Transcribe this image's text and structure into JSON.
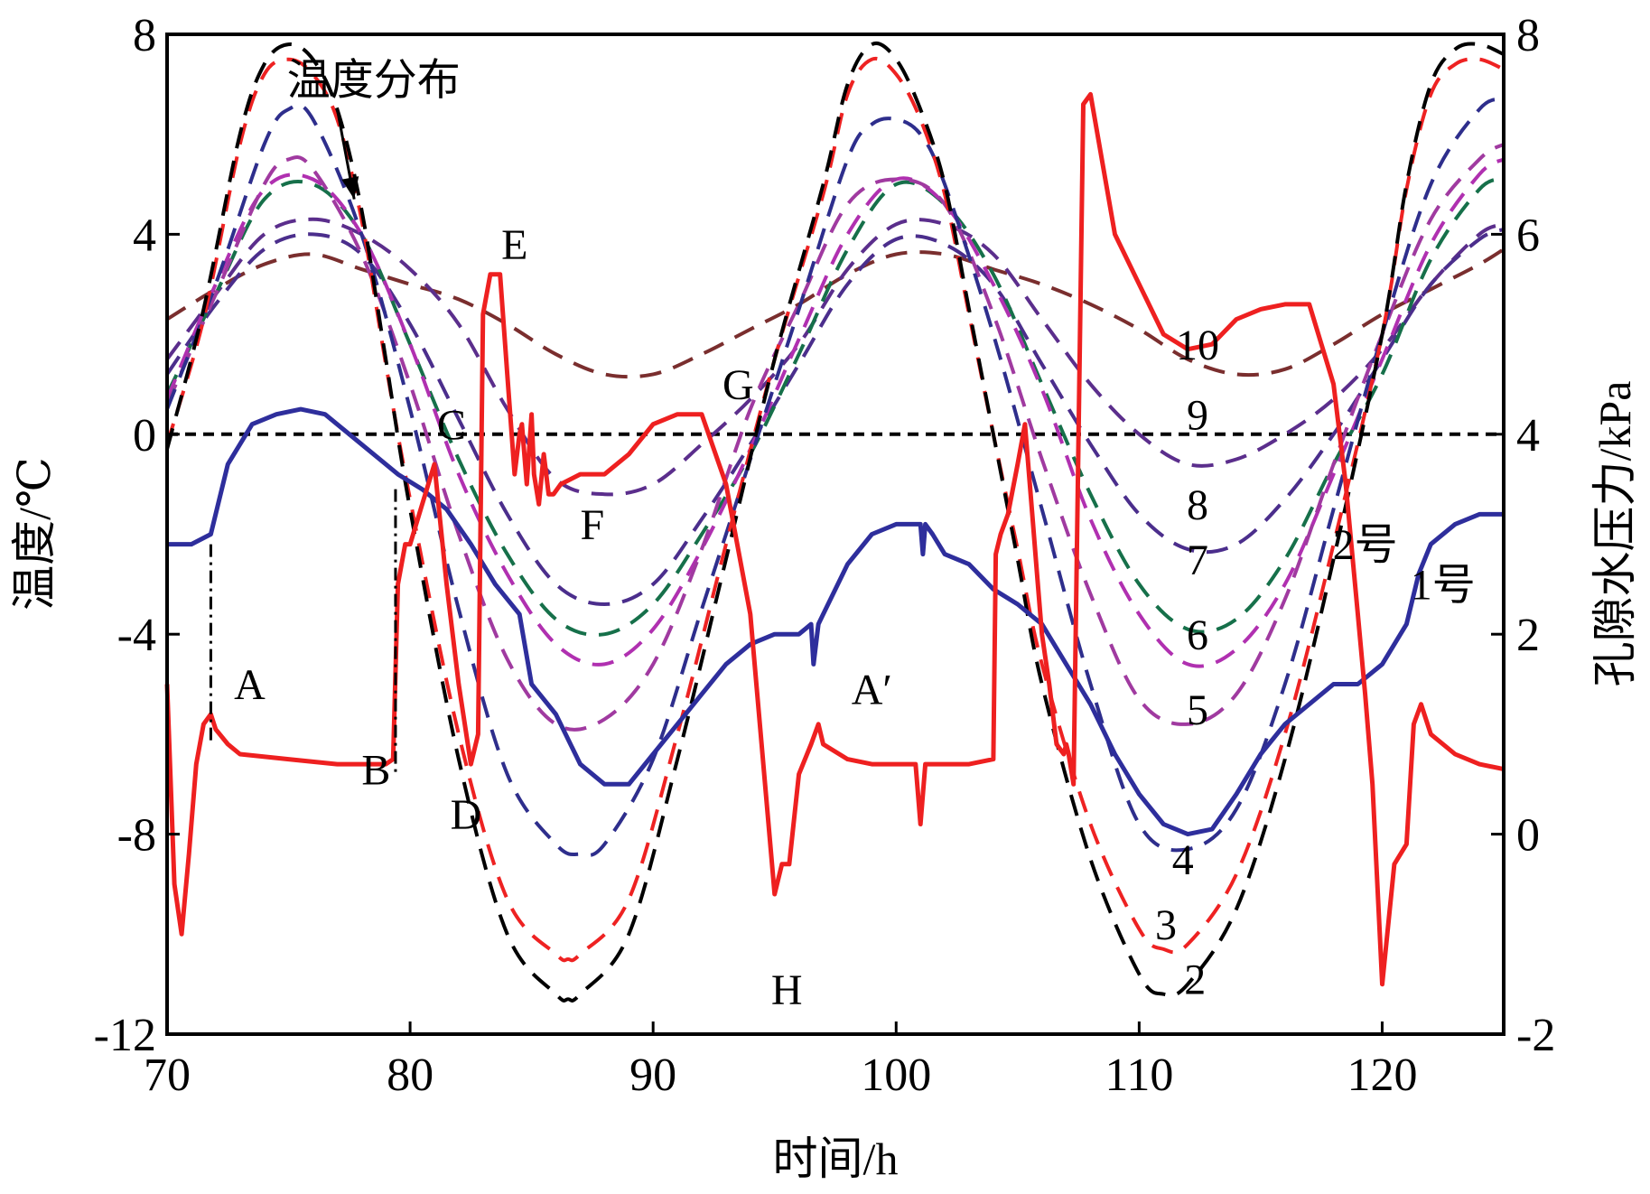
{
  "chart_data": {
    "type": "line",
    "title": "",
    "xlabel": "时间/h",
    "ylabel": "温度/℃",
    "y2label": "孔隙水压力/kPa",
    "xlim": [
      70,
      125
    ],
    "ylim": [
      -12,
      8
    ],
    "y2lim": [
      -2,
      8
    ],
    "xticks": [
      70,
      80,
      90,
      100,
      110,
      120
    ],
    "yticks": [
      -12,
      -8,
      -4,
      0,
      4,
      8
    ],
    "y2ticks": [
      -2,
      0,
      2,
      4,
      6,
      8
    ],
    "grid": false,
    "zero_line": {
      "y": 0,
      "style": "dashed",
      "color": "#000000"
    },
    "temperature_series": [
      {
        "name": "2",
        "color": "#000000",
        "x": [
          70,
          71.5,
          73,
          74,
          75,
          76,
          77,
          78,
          79,
          80,
          82,
          84,
          86,
          86.5,
          87,
          89,
          91,
          93,
          95,
          97,
          98,
          99,
          100,
          101,
          102,
          103,
          104,
          105,
          106,
          108,
          110,
          111,
          112,
          114,
          116,
          118,
          120,
          121,
          122,
          123,
          124,
          125
        ],
        "y": [
          -0.3,
          2.5,
          6,
          7.4,
          7.8,
          7.5,
          6.5,
          4.5,
          1.5,
          -1.5,
          -6.5,
          -10,
          -11.2,
          -11.3,
          -11.2,
          -10,
          -6.5,
          -2.5,
          1.5,
          5,
          7,
          7.8,
          7.5,
          6.5,
          5,
          2.5,
          0,
          -2.5,
          -5,
          -8.5,
          -10.8,
          -11.2,
          -11,
          -9.5,
          -6.5,
          -2.5,
          2,
          5,
          7,
          7.7,
          7.8,
          7.6
        ]
      },
      {
        "name": "3",
        "color": "#ee2222",
        "x": [
          70,
          71.5,
          73,
          74,
          75,
          76,
          77,
          78,
          79,
          80,
          82,
          84,
          86,
          86.5,
          87,
          89,
          91,
          93,
          95,
          97,
          98,
          99,
          100,
          101,
          102,
          103,
          104,
          105,
          106,
          108,
          110,
          111,
          112,
          114,
          116,
          118,
          120,
          121,
          122,
          123,
          124,
          125
        ],
        "y": [
          -0.2,
          2.3,
          5.8,
          7.2,
          7.5,
          7.2,
          6.3,
          4.3,
          1.4,
          -1.3,
          -6,
          -9.3,
          -10.4,
          -10.5,
          -10.4,
          -9.3,
          -6,
          -2.2,
          1.5,
          4.8,
          6.8,
          7.5,
          7.2,
          6.3,
          4.8,
          2.4,
          0,
          -2.3,
          -4.6,
          -7.8,
          -9.9,
          -10.3,
          -10.2,
          -8.8,
          -6,
          -2.2,
          2,
          4.9,
          6.8,
          7.4,
          7.5,
          7.3
        ]
      },
      {
        "name": "4",
        "color": "#2e2e8c",
        "x": [
          70,
          72,
          74,
          75,
          76,
          78,
          80,
          82,
          84,
          86,
          87,
          88,
          90,
          92,
          94,
          96,
          98,
          99,
          100,
          101,
          102,
          104,
          106,
          108,
          110,
          112,
          114,
          116,
          118,
          120,
          122,
          124,
          125
        ],
        "y": [
          0.5,
          3,
          5.8,
          6.5,
          6.3,
          4,
          0.5,
          -3.5,
          -6.8,
          -8.2,
          -8.4,
          -8.2,
          -6.5,
          -3.5,
          -0.5,
          2.5,
          5.5,
          6.2,
          6.3,
          6,
          5,
          2,
          -1.5,
          -5,
          -7.8,
          -8.3,
          -7.5,
          -5,
          -1.5,
          2,
          5,
          6.5,
          6.7
        ]
      },
      {
        "name": "5",
        "color": "#a03aa0",
        "x": [
          70,
          72,
          74,
          75,
          76,
          78,
          80,
          82,
          84,
          86,
          88,
          90,
          92,
          94,
          96,
          98,
          100,
          102,
          104,
          106,
          108,
          110,
          112,
          114,
          116,
          118,
          120,
          122,
          124,
          125
        ],
        "y": [
          0.6,
          2.8,
          5,
          5.5,
          5.3,
          3.6,
          1,
          -2,
          -4.5,
          -5.8,
          -5.7,
          -4.6,
          -2.3,
          0.5,
          2.6,
          4.6,
          5.1,
          4.6,
          2.4,
          -0.5,
          -3.2,
          -5.3,
          -5.8,
          -5.2,
          -3.3,
          -0.6,
          2,
          4.3,
          5.5,
          5.8
        ]
      },
      {
        "name": "6",
        "color": "#b030b0",
        "x": [
          70,
          72,
          74,
          76,
          78,
          80,
          82,
          84,
          86,
          88,
          90,
          92,
          94,
          96,
          98,
          100,
          102,
          104,
          106,
          108,
          110,
          112,
          114,
          116,
          118,
          120,
          122,
          124,
          125
        ],
        "y": [
          0.7,
          3,
          4.9,
          5.1,
          4,
          1.8,
          -0.8,
          -2.8,
          -4.2,
          -4.6,
          -3.9,
          -2.3,
          -0.3,
          1.9,
          4,
          5.1,
          4.6,
          3,
          0.9,
          -1.7,
          -3.6,
          -4.6,
          -4.3,
          -3,
          -0.8,
          1.5,
          3.8,
          5.2,
          5.5
        ]
      },
      {
        "name": "7",
        "color": "#16704a",
        "x": [
          70,
          72,
          74,
          76,
          78,
          80,
          82,
          84,
          86,
          88,
          90,
          92,
          94,
          96,
          98,
          100,
          102,
          104,
          106,
          108,
          110,
          112,
          114,
          116,
          118,
          120,
          122,
          124,
          125
        ],
        "y": [
          0.8,
          2.8,
          4.7,
          5,
          4,
          1.8,
          -0.5,
          -2.4,
          -3.7,
          -4,
          -3.4,
          -2,
          -0.4,
          1.6,
          3.7,
          5,
          4.6,
          3.2,
          1,
          -1.2,
          -3,
          -3.9,
          -3.7,
          -2.5,
          -0.6,
          1.2,
          3.5,
          4.9,
          5.1
        ]
      },
      {
        "name": "8",
        "color": "#4b2e8c",
        "x": [
          70,
          72,
          74,
          76,
          78,
          80,
          82,
          84,
          86,
          88,
          90,
          92,
          94,
          96,
          98,
          100,
          102,
          104,
          106,
          108,
          110,
          112,
          114,
          116,
          118,
          120,
          122,
          124,
          125
        ],
        "y": [
          1.2,
          2.6,
          3.7,
          4,
          3.6,
          2.2,
          0.3,
          -1.6,
          -3,
          -3.4,
          -3,
          -1.7,
          -0.2,
          1.4,
          3,
          3.9,
          3.8,
          3,
          1.4,
          -0.2,
          -1.6,
          -2.3,
          -2.2,
          -1.3,
          0,
          1.5,
          3,
          3.9,
          4.1
        ]
      },
      {
        "name": "9",
        "color": "#5b2e8c",
        "x": [
          70,
          72,
          74,
          76,
          78,
          80,
          82,
          84,
          86,
          88,
          90,
          92,
          94,
          96,
          98,
          100,
          102,
          104,
          106,
          108,
          110,
          112,
          114,
          116,
          118,
          120,
          122,
          124,
          125
        ],
        "y": [
          1.5,
          2.8,
          4,
          4.3,
          4,
          3.3,
          2.2,
          0.5,
          -0.9,
          -1.2,
          -1,
          -0.2,
          0.7,
          1.8,
          3.3,
          4.2,
          4.2,
          3.6,
          2.3,
          1,
          0,
          -0.6,
          -0.5,
          0,
          0.7,
          1.7,
          3,
          4,
          4.2
        ]
      },
      {
        "name": "10",
        "color": "#7a2e2e",
        "x": [
          70,
          72,
          74,
          76,
          78,
          80,
          82,
          84,
          86,
          88,
          90,
          92,
          94,
          96,
          98,
          100,
          102,
          104,
          106,
          108,
          110,
          112,
          114,
          116,
          118,
          120,
          122,
          124,
          125
        ],
        "y": [
          2.3,
          2.9,
          3.4,
          3.6,
          3.3,
          3,
          2.7,
          2.2,
          1.6,
          1.2,
          1.2,
          1.6,
          2.1,
          2.6,
          3.2,
          3.6,
          3.6,
          3.3,
          3,
          2.6,
          2.1,
          1.5,
          1.2,
          1.3,
          1.8,
          2.4,
          2.9,
          3.4,
          3.7
        ]
      }
    ],
    "pore_pressure_series": [
      {
        "name": "1号",
        "color": "#2e2e9c",
        "x": [
          70,
          71,
          71.8,
          72.5,
          73.5,
          74.5,
          75.5,
          76.5,
          77.5,
          78.5,
          79.5,
          80.5,
          81.5,
          82.5,
          83.5,
          84.5,
          85,
          86,
          87,
          88,
          89,
          90,
          91,
          92,
          93,
          94,
          95,
          96,
          96.5,
          96.6,
          96.8,
          97,
          98,
          99,
          100,
          101,
          101.1,
          101.2,
          101.5,
          102,
          103,
          104,
          105,
          106,
          107,
          108,
          109,
          110,
          111,
          112,
          113,
          114,
          115,
          116,
          117,
          118,
          119,
          120,
          121,
          121.5,
          122,
          123,
          124,
          125
        ],
        "y": [
          2.9,
          2.9,
          3,
          3.7,
          4.1,
          4.2,
          4.25,
          4.2,
          4.0,
          3.8,
          3.6,
          3.45,
          3.25,
          2.9,
          2.5,
          2.2,
          1.5,
          1.2,
          0.7,
          0.5,
          0.5,
          0.8,
          1.1,
          1.4,
          1.7,
          1.9,
          2,
          2,
          2.1,
          1.7,
          2.1,
          2.2,
          2.7,
          3,
          3.1,
          3.1,
          2.8,
          3.1,
          3,
          2.8,
          2.7,
          2.45,
          2.3,
          2.1,
          1.7,
          1.3,
          0.8,
          0.4,
          0.1,
          0,
          0.05,
          0.4,
          0.8,
          1.1,
          1.3,
          1.5,
          1.5,
          1.7,
          2.1,
          2.6,
          2.9,
          3.1,
          3.2,
          3.2
        ]
      },
      {
        "name": "2号",
        "color": "#ee2020",
        "x": [
          70,
          70.3,
          70.6,
          70.9,
          71.2,
          71.5,
          71.8,
          72,
          72.5,
          73,
          75,
          77,
          79,
          79.3,
          79.5,
          79.8,
          80,
          80.5,
          81,
          81.5,
          82,
          82.5,
          82.8,
          83,
          83.3,
          83.7,
          84,
          84.3,
          84.5,
          84.6,
          84.8,
          85,
          85.1,
          85.3,
          85.5,
          85.7,
          85.9,
          86.2,
          87,
          88,
          89,
          90,
          91,
          92,
          93,
          94,
          95,
          95.3,
          95.6,
          96,
          96.5,
          96.8,
          97,
          98,
          99,
          100,
          100.8,
          101,
          101.2,
          101.5,
          102,
          103,
          104,
          104.1,
          104.3,
          104.6,
          105,
          105.3,
          105.6,
          105.8,
          106,
          106.3,
          106.6,
          106.9,
          107,
          107.1,
          107.3,
          107.7,
          108,
          108.5,
          109,
          110,
          111,
          112,
          113,
          114,
          115,
          116,
          117,
          118,
          118.5,
          119,
          119.3,
          119.6,
          120,
          120.5,
          121,
          121.3,
          121.6,
          122,
          123,
          124,
          125
        ],
        "y": [
          1.5,
          -0.5,
          -1,
          -0.2,
          0.7,
          1.1,
          1.2,
          1.05,
          0.9,
          0.8,
          0.75,
          0.7,
          0.7,
          0.75,
          2.5,
          2.9,
          2.9,
          3.3,
          3.7,
          2.5,
          1.5,
          0.7,
          1,
          5.2,
          5.6,
          5.6,
          4.6,
          3.6,
          4,
          4.1,
          3.5,
          4.2,
          3.6,
          3.3,
          3.8,
          3.4,
          3.4,
          3.5,
          3.6,
          3.6,
          3.8,
          4.1,
          4.2,
          4.2,
          3.5,
          2.2,
          -0.6,
          -0.3,
          -0.3,
          0.6,
          0.9,
          1.1,
          0.9,
          0.75,
          0.7,
          0.7,
          0.7,
          0.1,
          0.7,
          0.7,
          0.7,
          0.7,
          0.75,
          2.8,
          3.0,
          3.2,
          3.7,
          4.1,
          3.2,
          2.6,
          2,
          1.5,
          0.9,
          0.8,
          0.9,
          0.8,
          0.5,
          7.3,
          7.4,
          6.7,
          6.0,
          5.5,
          5.0,
          4.85,
          4.9,
          5.15,
          5.25,
          5.3,
          5.3,
          4.5,
          3.5,
          2.2,
          1.4,
          0.5,
          -1.5,
          -0.3,
          -0.1,
          1.1,
          1.3,
          1,
          0.8,
          0.7,
          0.65
        ]
      }
    ],
    "reference_lines": [
      {
        "x": 71.8,
        "from_y": -2.2,
        "to_y": -6.2,
        "style": "dash-dot"
      },
      {
        "x": 79.4,
        "from_y": -1.1,
        "to_y": -6.8,
        "style": "dash-dot"
      }
    ],
    "annotations": [
      {
        "text": "温度分布",
        "x": 78.5,
        "y": 6.8,
        "arrow_to": [
          77.7,
          4.7
        ]
      },
      {
        "text": "A",
        "x": 73.4,
        "y": -5.3
      },
      {
        "text": "B",
        "x": 78.6,
        "y": -7.0
      },
      {
        "text": "C",
        "x": 81.7,
        "y": -0.1
      },
      {
        "text": "D",
        "x": 82.3,
        "y": -7.9
      },
      {
        "text": "E",
        "x": 84.3,
        "y": 3.5
      },
      {
        "text": "F",
        "x": 87.5,
        "y": -2.1
      },
      {
        "text": "G",
        "x": 93.5,
        "y": 0.7
      },
      {
        "text": "H",
        "x": 95.5,
        "y": -11.4
      },
      {
        "text": "A′",
        "x": 99.0,
        "y": -5.4
      },
      {
        "text": "10",
        "x": 112.4,
        "y": 1.5
      },
      {
        "text": "9",
        "x": 112.4,
        "y": 0.1
      },
      {
        "text": "8",
        "x": 112.4,
        "y": -1.7
      },
      {
        "text": "7",
        "x": 112.4,
        "y": -2.8
      },
      {
        "text": "6",
        "x": 112.4,
        "y": -4.3
      },
      {
        "text": "5",
        "x": 112.4,
        "y": -5.8
      },
      {
        "text": "4",
        "x": 111.8,
        "y": -8.8
      },
      {
        "text": "3",
        "x": 111.1,
        "y": -10.1
      },
      {
        "text": "2",
        "x": 112.3,
        "y": -11.2
      },
      {
        "text": "2号",
        "x": 119.3,
        "y": -2.5
      },
      {
        "text": "1号",
        "x": 122.5,
        "y": -3.3
      }
    ]
  }
}
